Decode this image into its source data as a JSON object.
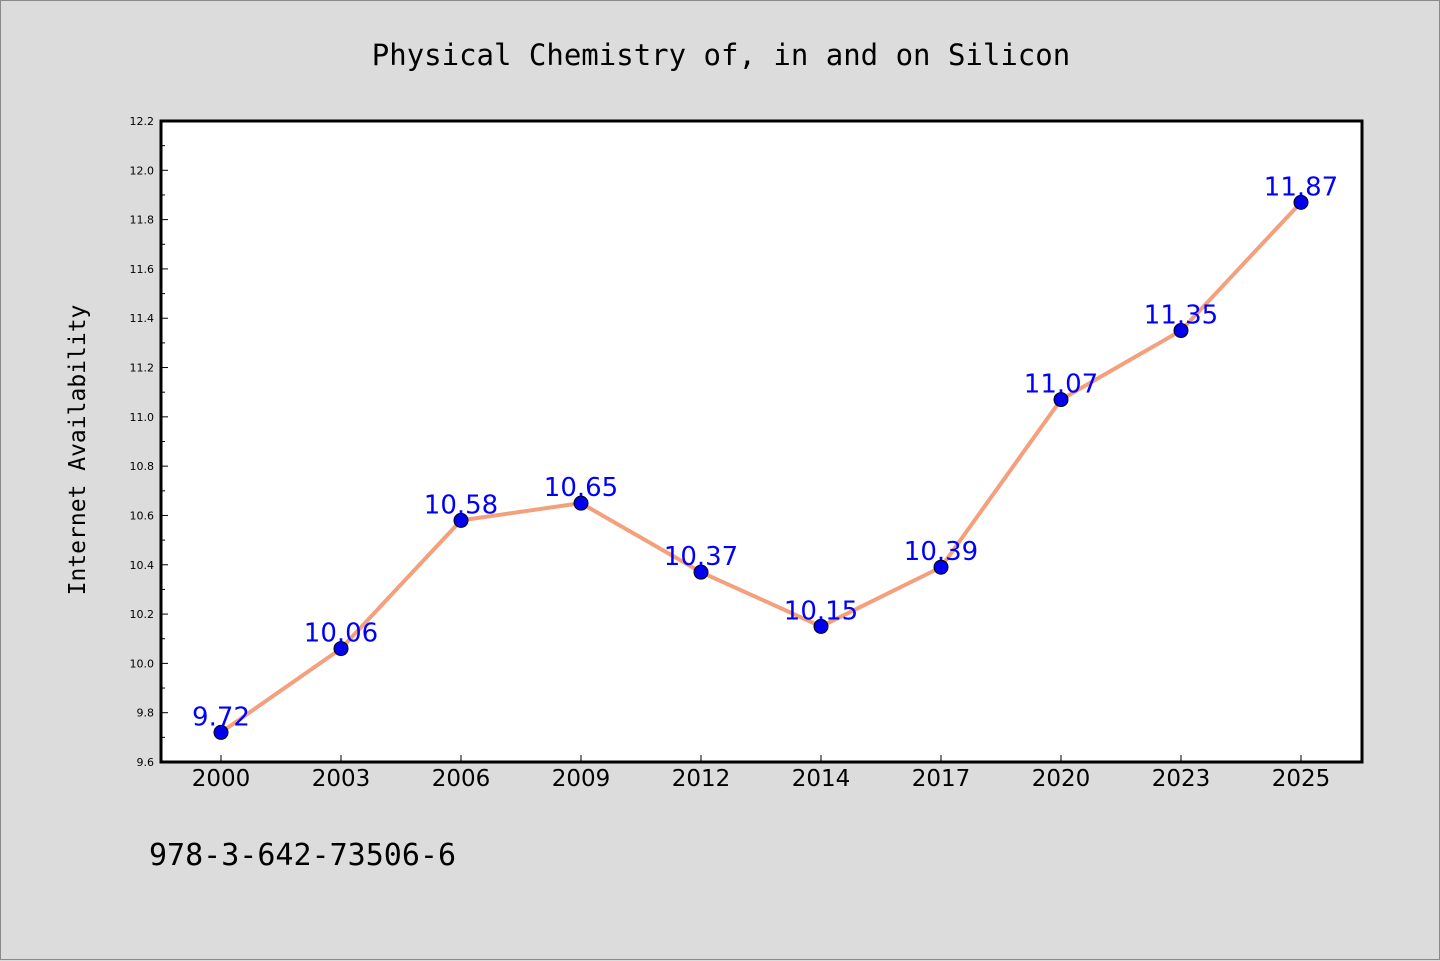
{
  "chart_data": {
    "type": "line",
    "title": "Physical Chemistry of, in and on Silicon",
    "xlabel": "",
    "ylabel": "Internet Availability",
    "categories": [
      "2000",
      "2003",
      "2006",
      "2009",
      "2012",
      "2014",
      "2017",
      "2020",
      "2023",
      "2025"
    ],
    "series": [
      {
        "values": [
          9.72,
          10.06,
          10.58,
          10.65,
          10.37,
          10.15,
          10.39,
          11.07,
          11.35,
          11.87
        ],
        "labels": [
          "9.72",
          "10.06",
          "10.58",
          "10.65",
          "10.37",
          "10.15",
          "10.39",
          "11.07",
          "11.35",
          "11.87"
        ],
        "line_color": "#f4a07c",
        "marker_color": "#0000ee"
      }
    ],
    "ylim": [
      9.6,
      12.2
    ],
    "yticks": [
      "9.6",
      "9.8",
      "10.0",
      "10.2",
      "10.4",
      "10.6",
      "10.8",
      "11.0",
      "11.2",
      "11.4",
      "11.6",
      "11.8",
      "12.0",
      "12.2"
    ],
    "grid": false,
    "legend": "none",
    "data_label_color": "#0000ff",
    "background": "#dcdcdc",
    "plot_background": "#ffffff"
  },
  "footnote": "978-3-642-73506-6"
}
